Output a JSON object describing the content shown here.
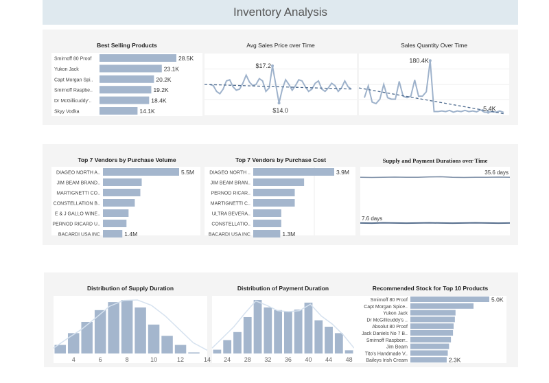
{
  "header": {
    "title": "Inventory Analysis"
  },
  "colors": {
    "bar": "#a4b6cd",
    "line": "#9eb2cb",
    "trend": "#4e6b8f",
    "header_bg": "#dfe9ef",
    "panel_bg": "#f4f4f4"
  },
  "chart_data": [
    {
      "id": "best",
      "type": "bar",
      "orientation": "horizontal",
      "title": "Best Selling Products",
      "categories": [
        "Smirnoff 80 Proof",
        "Yukon Jack",
        "Capt Morgan Spi..",
        "Smirnoff Raspbe..",
        "Dr McGillicuddy'..",
        "Skyy Vodka"
      ],
      "values": [
        28.5,
        23.1,
        20.2,
        19.2,
        18.4,
        14.1
      ],
      "labels": [
        "28.5K",
        "23.1K",
        "20.2K",
        "19.2K",
        "18.4K",
        "14.1K"
      ],
      "unit": "K"
    },
    {
      "id": "price",
      "type": "line",
      "title": "Avg Sales Price over Time",
      "values": [
        15.6,
        15.5,
        15.0,
        14.8,
        15.2,
        15.9,
        16.0,
        15.4,
        15.1,
        15.2,
        15.7,
        16.4,
        15.8,
        15.5,
        15.6,
        16.1,
        15.9,
        15.0,
        15.3,
        17.2,
        15.6,
        14.0,
        15.2,
        16.0,
        15.6,
        15.1,
        15.5,
        16.0,
        15.9,
        15.4,
        15.0,
        15.2,
        15.7,
        15.9,
        15.2,
        15.0,
        15.3,
        15.7,
        15.5,
        15.0,
        15.3,
        15.9,
        15.4,
        15.2
      ],
      "trend": [
        15.6,
        15.2
      ],
      "ylim": [
        13.3,
        17.9
      ],
      "annotations": [
        {
          "label": "$17.2",
          "value": 17.2
        },
        {
          "label": "$14.0",
          "value": 14.0
        }
      ]
    },
    {
      "id": "qty",
      "type": "line",
      "title": "Sales Quantity Over Time",
      "values": [
        55,
        95,
        40,
        35,
        50,
        100,
        55,
        50,
        50,
        110,
        60,
        55,
        60,
        115,
        60,
        60,
        75,
        180.4,
        8,
        8,
        10,
        8,
        12,
        6,
        10,
        8,
        12,
        8,
        10,
        7,
        14,
        6,
        5.4,
        8,
        6,
        10,
        5
      ],
      "trend": [
        88,
        0
      ],
      "ylim": [
        0,
        195
      ],
      "annotations": [
        {
          "label": "180.4K",
          "value": 180.4
        },
        {
          "label": "5.4K",
          "value": 5.4
        }
      ]
    },
    {
      "id": "vvol",
      "type": "bar",
      "orientation": "horizontal",
      "title": "Top 7 Vendors by Purchase Volume",
      "categories": [
        "DIAGEO NORTH A..",
        "JIM BEAM BRAND..",
        "MARTIGNETTI CO..",
        "CONSTELLATION B..",
        "E & J GALLO WINE..",
        "PERNOD RICARD U..",
        "BACARDI USA INC"
      ],
      "values": [
        5.5,
        2.8,
        2.7,
        2.3,
        1.85,
        1.7,
        1.4
      ],
      "labels": [
        "5.5M",
        "",
        "",
        "",
        "",
        "",
        "1.4M"
      ],
      "unit": "M"
    },
    {
      "id": "vcost",
      "type": "bar",
      "orientation": "horizontal",
      "title": "Top 7 Vendors by Purchase Cost",
      "categories": [
        "DIAGEO NORTH ..",
        "JIM BEAM BRAN..",
        "PERNOD RICAR..",
        "MARTIGNETTI C..",
        "ULTRA BEVERA..",
        "CONSTELLATIO..",
        "BACARDI USA INC"
      ],
      "values": [
        3.9,
        2.45,
        2.0,
        2.0,
        1.35,
        1.35,
        1.3
      ],
      "labels": [
        "3.9M",
        "",
        "",
        "",
        "",
        "",
        "1.3M"
      ],
      "unit": "M"
    },
    {
      "id": "dur",
      "type": "line",
      "title": "Supply and Payment Durations over Time",
      "ylim": [
        0,
        42
      ],
      "series": [
        {
          "values": [
            35.6,
            35.5,
            35.6,
            35.7,
            35.6,
            35.6,
            35.8,
            35.9,
            35.6,
            35.5,
            35.6,
            35.6,
            35.7,
            35.6
          ],
          "end_label": "35.6 days"
        },
        {
          "values": [
            7.6,
            7.5,
            7.7,
            7.6,
            7.5,
            7.6,
            7.7,
            7.6,
            7.5,
            7.6,
            7.7,
            7.6,
            7.5,
            7.6
          ],
          "end_label": "7.6 days",
          "start_label": true
        }
      ]
    },
    {
      "id": "hsup",
      "type": "bar",
      "title": "Distribution of Supply Duration",
      "bins": [
        3,
        4,
        5,
        6,
        7,
        8,
        9,
        10,
        11,
        12,
        13
      ],
      "values": [
        0.16,
        0.38,
        0.59,
        0.81,
        0.96,
        1.0,
        0.86,
        0.54,
        0.33,
        0.16,
        0.02
      ],
      "xticks": [
        "4",
        "6",
        "8",
        "10",
        "12",
        "14"
      ],
      "xlim": [
        2.5,
        14
      ],
      "curve": [
        0.1,
        0.28,
        0.45,
        0.66,
        0.88,
        0.99,
        1.0,
        0.9,
        0.7,
        0.45,
        0.2,
        0.06
      ]
    },
    {
      "id": "hpay",
      "type": "bar",
      "title": "Distribution of Payment Duration",
      "bins": [
        22,
        24,
        26,
        28,
        30,
        32,
        34,
        36,
        38,
        40,
        42,
        44,
        46,
        48
      ],
      "values": [
        0.07,
        0.25,
        0.4,
        0.68,
        1.0,
        0.86,
        0.81,
        0.79,
        0.82,
        0.95,
        0.62,
        0.5,
        0.38,
        0.06
      ],
      "xticks": [
        "24",
        "28",
        "32",
        "36",
        "40",
        "44",
        "48"
      ],
      "xlim": [
        21,
        49
      ],
      "curve": [
        0.1,
        0.3,
        0.5,
        0.75,
        0.98,
        0.9,
        0.8,
        0.78,
        0.8,
        0.92,
        0.7,
        0.55,
        0.35,
        0.1
      ]
    },
    {
      "id": "rec",
      "type": "bar",
      "orientation": "horizontal",
      "title": "Recommended Stock for Top 10 Products",
      "categories": [
        "Smirnoff 80 Proof",
        "Capt Morgan Spice..",
        "Yukon Jack",
        "Dr McGillicuddy's ..",
        "Absolut 80 Proof",
        "Jack Daniels No 7 B..",
        "Smirnoff Raspberr..",
        "Jim Beam",
        "Tito's Handmade V..",
        "Baileys Irish Cream"
      ],
      "values": [
        5.0,
        4.0,
        2.86,
        2.82,
        2.74,
        2.7,
        2.57,
        2.45,
        2.37,
        2.3
      ],
      "labels": [
        "5.0K",
        "",
        "",
        "",
        "",
        "",
        "",
        "",
        "",
        "2.3K"
      ],
      "unit": "K"
    }
  ]
}
